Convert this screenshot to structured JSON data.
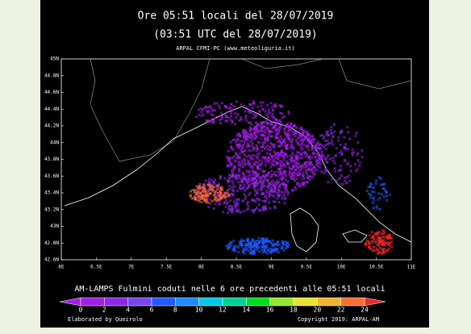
{
  "header": {
    "title": "Ore 05:51 locali  del 28/07/2019",
    "subtitle": "(03:51 UTC del 28/07/2019)",
    "source": "ARPAL CFMI-PC (www.meteoliguria.it)"
  },
  "map": {
    "lat_labels": [
      "45N",
      "44.8N",
      "44.6N",
      "44.4N",
      "44.2N",
      "44N",
      "43.8N",
      "43.6N",
      "43.4N",
      "43.2N",
      "43N",
      "42.8N",
      "42.6N"
    ],
    "lon_labels": [
      "6E",
      "6.5E",
      "7E",
      "7.5E",
      "8E",
      "8.5E",
      "9E",
      "9.5E",
      "10E",
      "10.5E",
      "11E"
    ]
  },
  "legend": {
    "caption": "AM-LAMPS Fulmini coduti nelle 6 ore precedenti alle 05:51 locali",
    "labels": [
      "0",
      "2",
      "4",
      "6",
      "8",
      "10",
      "12",
      "14",
      "16",
      "18",
      "20",
      "22",
      "24"
    ],
    "colors": [
      "#a01ee6",
      "#8c28e6",
      "#7846f0",
      "#1e5aff",
      "#1e8cff",
      "#00c8e6",
      "#00d296",
      "#00dc1e",
      "#96e632",
      "#e6e632",
      "#f0b432",
      "#fa6e32",
      "#f02828"
    ],
    "under_color": "#a01ee6",
    "over_color": "#f02828"
  },
  "footer": {
    "left": "Elaborated by Queirolo",
    "right": "Copyright 2019: ARPAL-AM"
  }
}
